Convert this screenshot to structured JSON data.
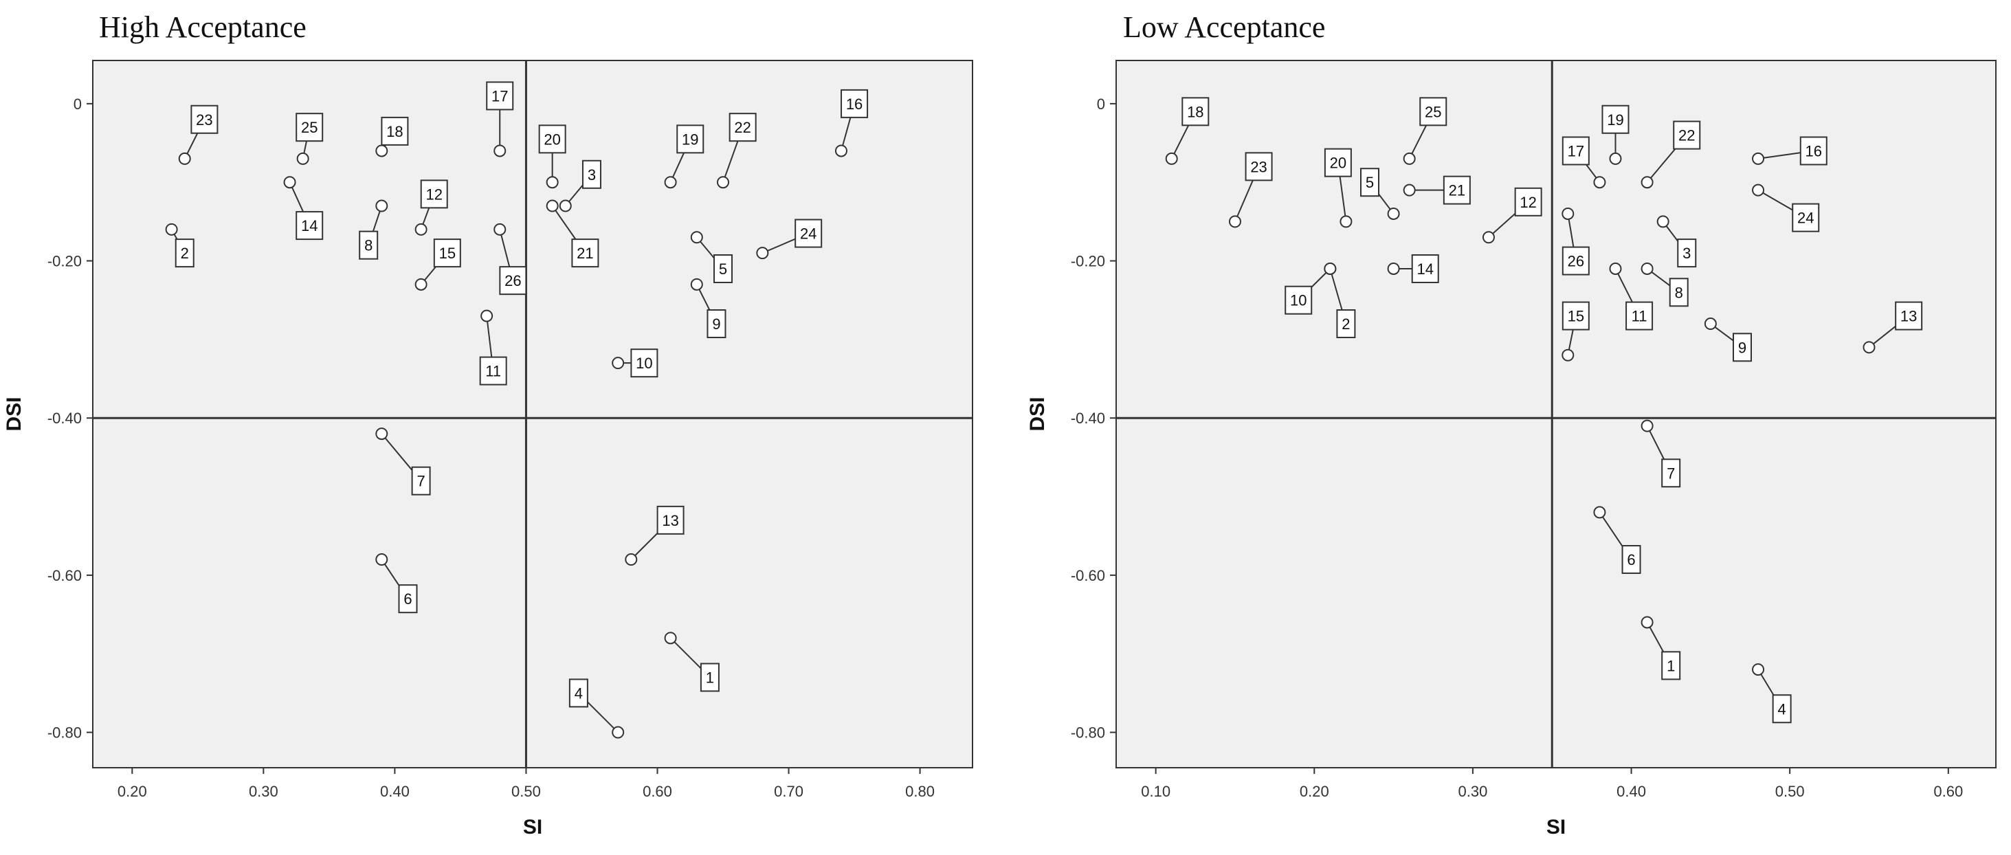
{
  "chart_data": [
    {
      "type": "scatter",
      "title": "High Acceptance",
      "xlabel": "SI",
      "ylabel": "DSI",
      "xlim": [
        0.17,
        0.84
      ],
      "ylim": [
        -0.845,
        0.055
      ],
      "x_ticks": [
        0.2,
        0.3,
        0.4,
        0.5,
        0.6,
        0.7,
        0.8
      ],
      "x_tick_labels": [
        "0.20",
        "0.30",
        "0.40",
        "0.50",
        "0.60",
        "0.70",
        "0.80"
      ],
      "y_ticks": [
        0,
        -0.2,
        -0.4,
        -0.6,
        -0.8
      ],
      "y_tick_labels": [
        "0",
        "-0.20",
        "-0.40",
        "-0.60",
        "-0.80"
      ],
      "reference_lines": {
        "x": 0.5,
        "y": -0.4
      },
      "grid": false,
      "points": [
        {
          "id": "1",
          "x": 0.61,
          "y": -0.68,
          "label_at": [
            0.64,
            -0.73
          ]
        },
        {
          "id": "2",
          "x": 0.23,
          "y": -0.16,
          "label_at": [
            0.24,
            -0.19
          ]
        },
        {
          "id": "3",
          "x": 0.53,
          "y": -0.13,
          "label_at": [
            0.55,
            -0.09
          ]
        },
        {
          "id": "4",
          "x": 0.57,
          "y": -0.8,
          "label_at": [
            0.54,
            -0.75
          ]
        },
        {
          "id": "5",
          "x": 0.63,
          "y": -0.17,
          "label_at": [
            0.65,
            -0.21
          ]
        },
        {
          "id": "6",
          "x": 0.39,
          "y": -0.58,
          "label_at": [
            0.41,
            -0.63
          ]
        },
        {
          "id": "7",
          "x": 0.39,
          "y": -0.42,
          "label_at": [
            0.42,
            -0.48
          ]
        },
        {
          "id": "8",
          "x": 0.39,
          "y": -0.13,
          "label_at": [
            0.38,
            -0.18
          ]
        },
        {
          "id": "9",
          "x": 0.63,
          "y": -0.23,
          "label_at": [
            0.645,
            -0.28
          ]
        },
        {
          "id": "10",
          "x": 0.57,
          "y": -0.33,
          "label_at": [
            0.59,
            -0.33
          ]
        },
        {
          "id": "11",
          "x": 0.47,
          "y": -0.27,
          "label_at": [
            0.475,
            -0.34
          ]
        },
        {
          "id": "12",
          "x": 0.42,
          "y": -0.16,
          "label_at": [
            0.43,
            -0.115
          ]
        },
        {
          "id": "13",
          "x": 0.58,
          "y": -0.58,
          "label_at": [
            0.61,
            -0.53
          ]
        },
        {
          "id": "14",
          "x": 0.32,
          "y": -0.1,
          "label_at": [
            0.335,
            -0.155
          ]
        },
        {
          "id": "15",
          "x": 0.42,
          "y": -0.23,
          "label_at": [
            0.44,
            -0.19
          ]
        },
        {
          "id": "16",
          "x": 0.74,
          "y": -0.06,
          "label_at": [
            0.75,
            0.0
          ]
        },
        {
          "id": "17",
          "x": 0.48,
          "y": -0.06,
          "label_at": [
            0.48,
            0.01
          ]
        },
        {
          "id": "18",
          "x": 0.39,
          "y": -0.06,
          "label_at": [
            0.4,
            -0.035
          ]
        },
        {
          "id": "19",
          "x": 0.61,
          "y": -0.1,
          "label_at": [
            0.625,
            -0.045
          ]
        },
        {
          "id": "20",
          "x": 0.52,
          "y": -0.1,
          "label_at": [
            0.52,
            -0.045
          ]
        },
        {
          "id": "21",
          "x": 0.52,
          "y": -0.13,
          "label_at": [
            0.545,
            -0.19
          ]
        },
        {
          "id": "22",
          "x": 0.65,
          "y": -0.1,
          "label_at": [
            0.665,
            -0.03
          ]
        },
        {
          "id": "23",
          "x": 0.24,
          "y": -0.07,
          "label_at": [
            0.255,
            -0.02
          ]
        },
        {
          "id": "24",
          "x": 0.68,
          "y": -0.19,
          "label_at": [
            0.715,
            -0.165
          ]
        },
        {
          "id": "25",
          "x": 0.33,
          "y": -0.07,
          "label_at": [
            0.335,
            -0.03
          ]
        },
        {
          "id": "26",
          "x": 0.48,
          "y": -0.16,
          "label_at": [
            0.49,
            -0.225
          ]
        }
      ]
    },
    {
      "type": "scatter",
      "title": "Low Acceptance",
      "xlabel": "SI",
      "ylabel": "DSI",
      "xlim": [
        0.075,
        0.63
      ],
      "ylim": [
        -0.845,
        0.055
      ],
      "x_ticks": [
        0.1,
        0.2,
        0.3,
        0.4,
        0.5,
        0.6
      ],
      "x_tick_labels": [
        "0.10",
        "0.20",
        "0.30",
        "0.40",
        "0.50",
        "0.60"
      ],
      "y_ticks": [
        0,
        -0.2,
        -0.4,
        -0.6,
        -0.8
      ],
      "y_tick_labels": [
        "0",
        "-0.20",
        "-0.40",
        "-0.60",
        "-0.80"
      ],
      "reference_lines": {
        "x": 0.35,
        "y": -0.4
      },
      "grid": false,
      "points": [
        {
          "id": "1",
          "x": 0.41,
          "y": -0.66,
          "label_at": [
            0.425,
            -0.715
          ]
        },
        {
          "id": "2",
          "x": 0.21,
          "y": -0.21,
          "label_at": [
            0.22,
            -0.28
          ]
        },
        {
          "id": "3",
          "x": 0.42,
          "y": -0.15,
          "label_at": [
            0.435,
            -0.19
          ]
        },
        {
          "id": "4",
          "x": 0.48,
          "y": -0.72,
          "label_at": [
            0.495,
            -0.77
          ]
        },
        {
          "id": "5",
          "x": 0.25,
          "y": -0.14,
          "label_at": [
            0.235,
            -0.1
          ]
        },
        {
          "id": "6",
          "x": 0.38,
          "y": -0.52,
          "label_at": [
            0.4,
            -0.58
          ]
        },
        {
          "id": "7",
          "x": 0.41,
          "y": -0.41,
          "label_at": [
            0.425,
            -0.47
          ]
        },
        {
          "id": "8",
          "x": 0.41,
          "y": -0.21,
          "label_at": [
            0.43,
            -0.24
          ]
        },
        {
          "id": "9",
          "x": 0.45,
          "y": -0.28,
          "label_at": [
            0.47,
            -0.31
          ]
        },
        {
          "id": "10",
          "x": 0.21,
          "y": -0.21,
          "label_at": [
            0.19,
            -0.25
          ]
        },
        {
          "id": "11",
          "x": 0.39,
          "y": -0.21,
          "label_at": [
            0.405,
            -0.27
          ]
        },
        {
          "id": "12",
          "x": 0.31,
          "y": -0.17,
          "label_at": [
            0.335,
            -0.125
          ]
        },
        {
          "id": "13",
          "x": 0.55,
          "y": -0.31,
          "label_at": [
            0.575,
            -0.27
          ]
        },
        {
          "id": "14",
          "x": 0.25,
          "y": -0.21,
          "label_at": [
            0.27,
            -0.21
          ]
        },
        {
          "id": "15",
          "x": 0.36,
          "y": -0.32,
          "label_at": [
            0.365,
            -0.27
          ]
        },
        {
          "id": "16",
          "x": 0.48,
          "y": -0.07,
          "label_at": [
            0.515,
            -0.06
          ]
        },
        {
          "id": "17",
          "x": 0.38,
          "y": -0.1,
          "label_at": [
            0.365,
            -0.06
          ]
        },
        {
          "id": "18",
          "x": 0.11,
          "y": -0.07,
          "label_at": [
            0.125,
            -0.01
          ]
        },
        {
          "id": "19",
          "x": 0.39,
          "y": -0.07,
          "label_at": [
            0.39,
            -0.02
          ]
        },
        {
          "id": "20",
          "x": 0.22,
          "y": -0.15,
          "label_at": [
            0.215,
            -0.075
          ]
        },
        {
          "id": "21",
          "x": 0.26,
          "y": -0.11,
          "label_at": [
            0.29,
            -0.11
          ]
        },
        {
          "id": "22",
          "x": 0.41,
          "y": -0.1,
          "label_at": [
            0.435,
            -0.04
          ]
        },
        {
          "id": "23",
          "x": 0.15,
          "y": -0.15,
          "label_at": [
            0.165,
            -0.08
          ]
        },
        {
          "id": "24",
          "x": 0.48,
          "y": -0.11,
          "label_at": [
            0.51,
            -0.145
          ]
        },
        {
          "id": "25",
          "x": 0.26,
          "y": -0.07,
          "label_at": [
            0.275,
            -0.01
          ]
        },
        {
          "id": "26",
          "x": 0.36,
          "y": -0.14,
          "label_at": [
            0.365,
            -0.2
          ]
        }
      ]
    }
  ],
  "panels": {
    "left": {
      "title": "High Acceptance"
    },
    "right": {
      "title": "Low Acceptance"
    }
  },
  "colors": {
    "plot_bg": "#f0f0f0",
    "axis": "#333333",
    "marker_fill": "#ffffff",
    "text": "#111111"
  }
}
